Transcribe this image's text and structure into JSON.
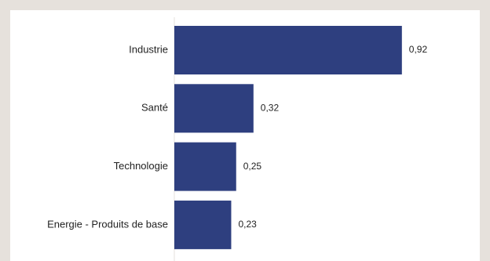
{
  "chart_data": {
    "type": "bar",
    "orientation": "horizontal",
    "categories": [
      "Industrie",
      "Santé",
      "Technologie",
      "Energie - Produits de base"
    ],
    "values": [
      0.92,
      0.32,
      0.25,
      0.23
    ],
    "value_labels": [
      "0,92",
      "0,32",
      "0,25",
      "0,23"
    ],
    "title": "",
    "xlabel": "",
    "ylabel": "",
    "xlim": [
      0,
      1
    ],
    "grid": false,
    "bar_color": "#2e3f7f",
    "axis_color": "#e6e1dc"
  }
}
